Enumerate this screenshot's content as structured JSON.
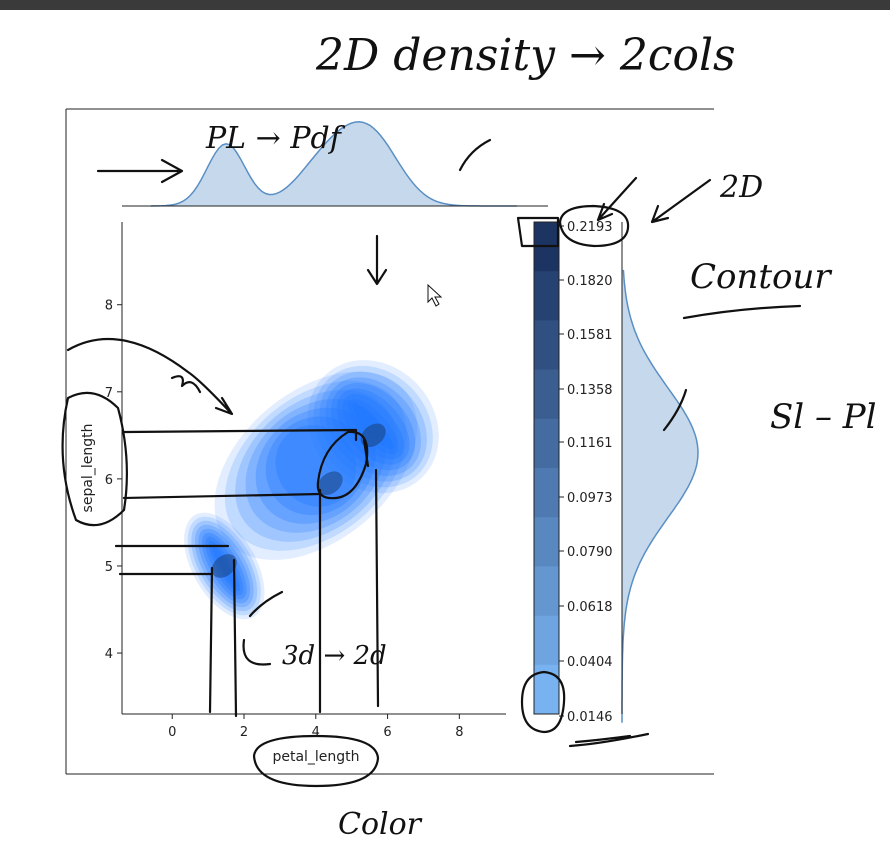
{
  "chart_data": {
    "type": "bivariate-kde-joint",
    "xlabel": "petal_length",
    "ylabel": "sepal_length",
    "xticks": [
      0,
      2,
      4,
      6,
      8
    ],
    "yticks": [
      4,
      5,
      6,
      7,
      8
    ],
    "xlim": [
      -1.4,
      9.3
    ],
    "ylim": [
      3.3,
      8.95
    ],
    "colorbar": {
      "ticks": [
        "0.2193",
        "0.1820",
        "0.1581",
        "0.1358",
        "0.1161",
        "0.0973",
        "0.0790",
        "0.0618",
        "0.0404",
        "0.0146"
      ],
      "min": 0.0146,
      "max": 0.2193
    },
    "density_peaks": [
      {
        "petal_length": 1.45,
        "sepal_length": 5.0,
        "level": 0.2193
      },
      {
        "petal_length": 4.4,
        "sepal_length": 5.95,
        "level": 0.17
      },
      {
        "petal_length": 5.6,
        "sepal_length": 6.5,
        "level": 0.18
      }
    ],
    "marginal_x_peaks": [
      1.5,
      4.4,
      5.6
    ],
    "marginal_y_peak": 6.3,
    "colors": {
      "fill": "#1f77ff",
      "marginal_fill": "#c6d9ec",
      "marginal_line": "#5a8fc4"
    }
  },
  "annotations": {
    "title": "2D density → 2cols",
    "pl_pdf": "PL → Pdf",
    "two_d": "2D",
    "contour": "Contour",
    "sl_pl": "Sl – Pl",
    "three_d": "3d → 2d",
    "color": "Color"
  }
}
